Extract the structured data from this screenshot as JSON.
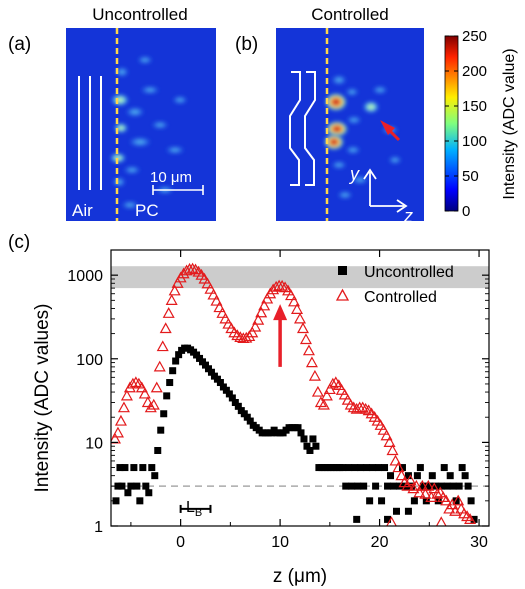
{
  "panels": {
    "a": {
      "letter": "(a)",
      "title": "Uncontrolled",
      "left_label": "Air",
      "right_label": "PC",
      "scalebar_label": "10 μm"
    },
    "b": {
      "letter": "(b)",
      "title": "Controlled",
      "axis_y": "y",
      "axis_z": "z"
    },
    "c": {
      "letter": "(c)"
    }
  },
  "colorbar": {
    "label": "Intensity (ADC value)",
    "ticks": [
      0,
      50,
      100,
      150,
      200,
      250
    ],
    "tick_labels": [
      "0",
      "50",
      "100",
      "150",
      "200",
      "250"
    ],
    "range": [
      0,
      250
    ]
  },
  "colors": {
    "uncontrolled": "#000000",
    "controlled": "#e31a1c",
    "arrow": "#e8202a",
    "band": "#cccccc",
    "dashed_line": "#aaaaaa",
    "marker_line": "#ffd84a",
    "heatmap_bg": "#1434d8"
  },
  "annotations": {
    "lb_label": "L",
    "lb_sub": "B",
    "lb_range": [
      0,
      3
    ],
    "arrow_z": 10,
    "arrow_y_range": [
      80,
      740
    ]
  },
  "chart_data": {
    "type": "scatter",
    "xlabel": "z (μm)",
    "ylabel": "Intensity (ADC values)",
    "xlim": [
      -7,
      31
    ],
    "ylim": [
      1,
      2000
    ],
    "yscale": "log",
    "x_ticks": [
      0,
      10,
      20,
      30
    ],
    "x_tick_labels": [
      "0",
      "10",
      "20",
      "30"
    ],
    "y_ticks": [
      1,
      10,
      100,
      1000
    ],
    "y_tick_labels": [
      "1",
      "10",
      "100",
      "1000"
    ],
    "legend_position": "top-right",
    "saturation_band": [
      700,
      1280
    ],
    "noise_floor": 3,
    "series": [
      {
        "name": "Uncontrolled",
        "marker": "square",
        "points": [
          [
            -6.5,
            2
          ],
          [
            -6.3,
            3
          ],
          [
            -6.1,
            5
          ],
          [
            -5.9,
            3
          ],
          [
            -5.6,
            5
          ],
          [
            -5.3,
            2.5
          ],
          [
            -5.0,
            3
          ],
          [
            -4.7,
            5
          ],
          [
            -4.4,
            3
          ],
          [
            -4.1,
            2
          ],
          [
            -3.8,
            5
          ],
          [
            -3.5,
            3
          ],
          [
            -3.2,
            2.5
          ],
          [
            -2.9,
            5
          ],
          [
            -2.6,
            4
          ],
          [
            -2.3,
            8
          ],
          [
            -2.0,
            14
          ],
          [
            -1.7,
            22
          ],
          [
            -1.4,
            36
          ],
          [
            -1.1,
            52
          ],
          [
            -0.8,
            72
          ],
          [
            -0.5,
            94
          ],
          [
            -0.2,
            112
          ],
          [
            0.1,
            126
          ],
          [
            0.4,
            134
          ],
          [
            0.7,
            134
          ],
          [
            1.0,
            128
          ],
          [
            1.3,
            120
          ],
          [
            1.6,
            111
          ],
          [
            1.9,
            101
          ],
          [
            2.2,
            92
          ],
          [
            2.5,
            84
          ],
          [
            2.8,
            76
          ],
          [
            3.1,
            69
          ],
          [
            3.4,
            62
          ],
          [
            3.7,
            57
          ],
          [
            4.0,
            52
          ],
          [
            4.3,
            46
          ],
          [
            4.6,
            42
          ],
          [
            4.9,
            38
          ],
          [
            5.2,
            34
          ],
          [
            5.5,
            30
          ],
          [
            5.8,
            27
          ],
          [
            6.1,
            24
          ],
          [
            6.4,
            22
          ],
          [
            6.7,
            20
          ],
          [
            7.0,
            18
          ],
          [
            7.3,
            16
          ],
          [
            7.6,
            15
          ],
          [
            7.9,
            14
          ],
          [
            8.2,
            13
          ],
          [
            8.5,
            13
          ],
          [
            8.8,
            13
          ],
          [
            9.1,
            13
          ],
          [
            9.4,
            14
          ],
          [
            9.7,
            13
          ],
          [
            10.0,
            13
          ],
          [
            10.3,
            13
          ],
          [
            10.6,
            14
          ],
          [
            10.9,
            15
          ],
          [
            11.2,
            15
          ],
          [
            11.5,
            15
          ],
          [
            11.8,
            15
          ],
          [
            12.1,
            13
          ],
          [
            12.4,
            11
          ],
          [
            12.7,
            9
          ],
          [
            13.0,
            8
          ],
          [
            13.3,
            11
          ],
          [
            13.6,
            9
          ],
          [
            13.9,
            5
          ],
          [
            14.2,
            5
          ],
          [
            14.5,
            5
          ],
          [
            14.8,
            5
          ],
          [
            15.1,
            5
          ],
          [
            15.4,
            5
          ],
          [
            15.7,
            5
          ],
          [
            16.0,
            5
          ],
          [
            16.3,
            5
          ],
          [
            16.6,
            3
          ],
          [
            16.9,
            5
          ],
          [
            17.2,
            3
          ],
          [
            17.5,
            5
          ],
          [
            17.8,
            3
          ],
          [
            18.1,
            5
          ],
          [
            18.4,
            3
          ],
          [
            18.7,
            5
          ],
          [
            19.0,
            2
          ],
          [
            19.3,
            5
          ],
          [
            19.6,
            3
          ],
          [
            19.9,
            5
          ],
          [
            20.2,
            2
          ],
          [
            20.5,
            5
          ],
          [
            20.8,
            3
          ],
          [
            21.1,
            4
          ],
          [
            21.4,
            3
          ],
          [
            21.7,
            1.5
          ],
          [
            22.0,
            3
          ],
          [
            22.3,
            5
          ],
          [
            22.6,
            3
          ],
          [
            22.9,
            4
          ],
          [
            23.2,
            3
          ],
          [
            23.5,
            2
          ],
          [
            23.8,
            4
          ],
          [
            24.1,
            5
          ],
          [
            24.4,
            3
          ],
          [
            24.7,
            2
          ],
          [
            25.0,
            3
          ],
          [
            25.3,
            4
          ],
          [
            25.6,
            3
          ],
          [
            25.9,
            2
          ],
          [
            26.2,
            3
          ],
          [
            26.5,
            5
          ],
          [
            26.8,
            3
          ],
          [
            27.1,
            4
          ],
          [
            27.4,
            3
          ],
          [
            27.7,
            2
          ],
          [
            28.0,
            3
          ],
          [
            28.3,
            5
          ],
          [
            28.6,
            4
          ],
          [
            28.9,
            3
          ],
          [
            29.2,
            2
          ],
          [
            29.5,
            1.2
          ],
          [
            17.7,
            1.2
          ],
          [
            20.8,
            1.2
          ],
          [
            22.9,
            1.5
          ]
        ]
      },
      {
        "name": "Controlled",
        "marker": "triangle-open",
        "points": [
          [
            -6.6,
            11
          ],
          [
            -6.3,
            13
          ],
          [
            -6.0,
            18
          ],
          [
            -5.7,
            26
          ],
          [
            -5.4,
            36
          ],
          [
            -5.1,
            45
          ],
          [
            -4.8,
            50
          ],
          [
            -4.5,
            52
          ],
          [
            -4.2,
            50
          ],
          [
            -3.9,
            45
          ],
          [
            -3.6,
            38
          ],
          [
            -3.3,
            30
          ],
          [
            -3.0,
            26
          ],
          [
            -2.7,
            28
          ],
          [
            -2.4,
            45
          ],
          [
            -2.1,
            80
          ],
          [
            -1.8,
            140
          ],
          [
            -1.5,
            230
          ],
          [
            -1.2,
            350
          ],
          [
            -0.9,
            500
          ],
          [
            -0.6,
            650
          ],
          [
            -0.3,
            800
          ],
          [
            0.0,
            930
          ],
          [
            0.3,
            1040
          ],
          [
            0.6,
            1130
          ],
          [
            0.9,
            1180
          ],
          [
            1.2,
            1190
          ],
          [
            1.5,
            1160
          ],
          [
            1.8,
            1090
          ],
          [
            2.1,
            1000
          ],
          [
            2.4,
            900
          ],
          [
            2.7,
            790
          ],
          [
            3.0,
            680
          ],
          [
            3.3,
            580
          ],
          [
            3.6,
            490
          ],
          [
            3.9,
            410
          ],
          [
            4.2,
            350
          ],
          [
            4.5,
            300
          ],
          [
            4.8,
            260
          ],
          [
            5.1,
            230
          ],
          [
            5.4,
            205
          ],
          [
            5.7,
            190
          ],
          [
            6.0,
            180
          ],
          [
            6.3,
            175
          ],
          [
            6.6,
            177
          ],
          [
            6.9,
            185
          ],
          [
            7.2,
            205
          ],
          [
            7.5,
            240
          ],
          [
            7.8,
            290
          ],
          [
            8.1,
            355
          ],
          [
            8.4,
            430
          ],
          [
            8.7,
            520
          ],
          [
            9.0,
            600
          ],
          [
            9.3,
            670
          ],
          [
            9.6,
            720
          ],
          [
            9.9,
            745
          ],
          [
            10.2,
            740
          ],
          [
            10.5,
            710
          ],
          [
            10.8,
            650
          ],
          [
            11.1,
            570
          ],
          [
            11.4,
            480
          ],
          [
            11.7,
            390
          ],
          [
            12.0,
            300
          ],
          [
            12.3,
            230
          ],
          [
            12.6,
            170
          ],
          [
            12.9,
            125
          ],
          [
            13.2,
            90
          ],
          [
            13.5,
            62
          ],
          [
            13.8,
            40
          ],
          [
            14.1,
            30
          ],
          [
            14.4,
            28
          ],
          [
            14.7,
            36
          ],
          [
            15.0,
            43
          ],
          [
            15.3,
            50
          ],
          [
            15.6,
            52
          ],
          [
            15.9,
            48
          ],
          [
            16.2,
            42
          ],
          [
            16.5,
            37
          ],
          [
            16.8,
            32
          ],
          [
            17.1,
            28
          ],
          [
            17.4,
            26
          ],
          [
            17.7,
            25
          ],
          [
            18.0,
            26
          ],
          [
            18.3,
            26
          ],
          [
            18.6,
            25
          ],
          [
            18.9,
            24
          ],
          [
            19.2,
            22
          ],
          [
            19.5,
            20
          ],
          [
            19.8,
            18
          ],
          [
            20.1,
            16
          ],
          [
            20.4,
            14
          ],
          [
            20.7,
            12
          ],
          [
            21.0,
            10
          ],
          [
            21.3,
            8
          ],
          [
            21.6,
            6
          ],
          [
            21.9,
            5
          ],
          [
            22.2,
            4
          ],
          [
            22.5,
            3.3
          ],
          [
            22.8,
            3
          ],
          [
            23.1,
            3.5
          ],
          [
            23.4,
            2.8
          ],
          [
            23.7,
            3
          ],
          [
            24.0,
            2.5
          ],
          [
            24.3,
            3
          ],
          [
            24.6,
            2.4
          ],
          [
            24.9,
            3
          ],
          [
            25.2,
            2.2
          ],
          [
            25.5,
            2.8
          ],
          [
            25.8,
            2.4
          ],
          [
            26.1,
            2.5
          ],
          [
            26.4,
            2.2
          ],
          [
            26.7,
            2
          ],
          [
            27.0,
            1.6
          ],
          [
            27.3,
            1.8
          ],
          [
            27.6,
            1.5
          ],
          [
            27.9,
            2
          ],
          [
            28.2,
            1.6
          ],
          [
            28.5,
            1.4
          ],
          [
            28.8,
            1.3
          ],
          [
            29.1,
            1.2
          ],
          [
            21.2,
            1.1
          ],
          [
            26.2,
            1.1
          ]
        ]
      }
    ]
  }
}
